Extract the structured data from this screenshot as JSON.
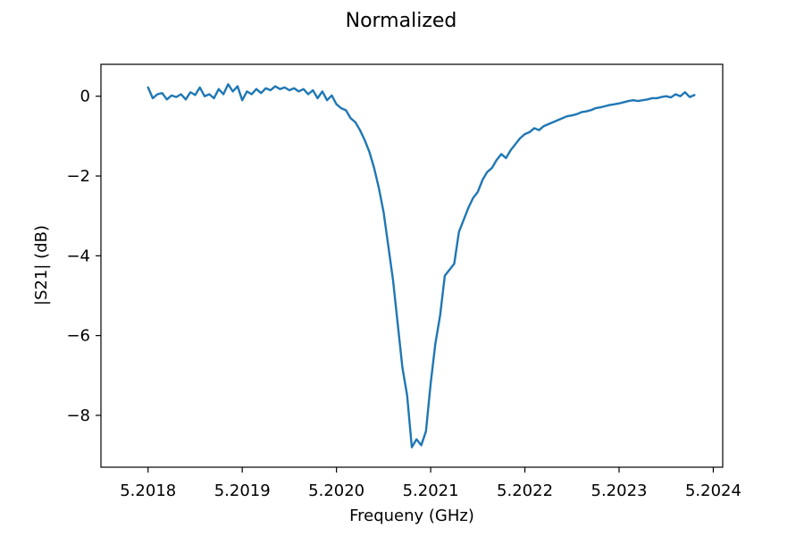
{
  "chart_data": {
    "type": "line",
    "title": "Normalized",
    "xlabel": "Frequeny (GHz)",
    "ylabel": "|S21| (dB)",
    "xlim": [
      5.20175,
      5.20241
    ],
    "ylim": [
      -9.3,
      0.8
    ],
    "grid": false,
    "xticks": [
      5.2018,
      5.2019,
      5.202,
      5.2021,
      5.2022,
      5.2023,
      5.2024
    ],
    "xtick_labels": [
      "5.2018",
      "5.2019",
      "5.2020",
      "5.2021",
      "5.2022",
      "5.2023",
      "5.2024"
    ],
    "yticks": [
      0,
      -2,
      -4,
      -6,
      -8
    ],
    "ytick_labels": [
      "0",
      "−2",
      "−4",
      "−6",
      "−8"
    ],
    "series": [
      {
        "color": "#1f77b4",
        "x": [
          5.2018,
          5.201805,
          5.20181,
          5.201815,
          5.20182,
          5.201825,
          5.20183,
          5.201835,
          5.20184,
          5.201845,
          5.20185,
          5.201855,
          5.20186,
          5.201865,
          5.20187,
          5.201875,
          5.20188,
          5.201885,
          5.20189,
          5.201895,
          5.2019,
          5.201905,
          5.20191,
          5.201915,
          5.20192,
          5.201925,
          5.20193,
          5.201935,
          5.20194,
          5.201945,
          5.20195,
          5.201955,
          5.20196,
          5.201965,
          5.20197,
          5.201975,
          5.20198,
          5.201985,
          5.20199,
          5.201995,
          5.202,
          5.202005,
          5.20201,
          5.202015,
          5.20202,
          5.202025,
          5.20203,
          5.202035,
          5.20204,
          5.202045,
          5.20205,
          5.202055,
          5.20206,
          5.202065,
          5.20207,
          5.202075,
          5.20208,
          5.202085,
          5.20209,
          5.202095,
          5.2021,
          5.202105,
          5.20211,
          5.202115,
          5.20212,
          5.202125,
          5.20213,
          5.202135,
          5.20214,
          5.202145,
          5.20215,
          5.202155,
          5.20216,
          5.202165,
          5.20217,
          5.202175,
          5.20218,
          5.202185,
          5.20219,
          5.202195,
          5.2022,
          5.202205,
          5.20221,
          5.202215,
          5.20222,
          5.202225,
          5.20223,
          5.202235,
          5.20224,
          5.202245,
          5.20225,
          5.202255,
          5.20226,
          5.202265,
          5.20227,
          5.202275,
          5.20228,
          5.202285,
          5.20229,
          5.202295,
          5.2023,
          5.202305,
          5.20231,
          5.202315,
          5.20232,
          5.202325,
          5.20233,
          5.202335,
          5.20234,
          5.202345,
          5.20235,
          5.202355,
          5.20236,
          5.202365,
          5.20237,
          5.202375,
          5.20238
        ],
        "y": [
          0.22,
          -0.05,
          0.05,
          0.08,
          -0.08,
          0.02,
          -0.02,
          0.05,
          -0.08,
          0.1,
          0.03,
          0.22,
          0.0,
          0.05,
          -0.05,
          0.18,
          0.05,
          0.3,
          0.12,
          0.25,
          -0.1,
          0.12,
          0.05,
          0.18,
          0.08,
          0.2,
          0.15,
          0.25,
          0.18,
          0.22,
          0.15,
          0.2,
          0.12,
          0.18,
          0.05,
          0.15,
          -0.05,
          0.12,
          -0.1,
          0.02,
          -0.2,
          -0.3,
          -0.35,
          -0.55,
          -0.65,
          -0.85,
          -1.1,
          -1.4,
          -1.8,
          -2.3,
          -2.9,
          -3.75,
          -4.6,
          -5.7,
          -6.8,
          -7.5,
          -8.8,
          -8.6,
          -8.75,
          -8.4,
          -7.2,
          -6.2,
          -5.5,
          -4.5,
          -4.35,
          -4.2,
          -3.4,
          -3.1,
          -2.8,
          -2.55,
          -2.4,
          -2.1,
          -1.9,
          -1.8,
          -1.6,
          -1.45,
          -1.55,
          -1.35,
          -1.2,
          -1.05,
          -0.95,
          -0.9,
          -0.8,
          -0.85,
          -0.75,
          -0.7,
          -0.65,
          -0.6,
          -0.55,
          -0.5,
          -0.48,
          -0.45,
          -0.4,
          -0.38,
          -0.35,
          -0.3,
          -0.28,
          -0.25,
          -0.22,
          -0.2,
          -0.18,
          -0.15,
          -0.12,
          -0.1,
          -0.12,
          -0.1,
          -0.08,
          -0.05,
          -0.05,
          -0.02,
          0.0,
          -0.03,
          0.05,
          0.0,
          0.1,
          -0.02,
          0.03
        ]
      }
    ]
  }
}
